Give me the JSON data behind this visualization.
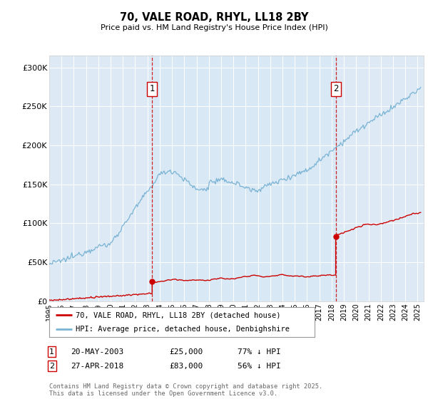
{
  "title": "70, VALE ROAD, RHYL, LL18 2BY",
  "subtitle": "Price paid vs. HM Land Registry's House Price Index (HPI)",
  "ylabel_ticks": [
    "£0",
    "£50K",
    "£100K",
    "£150K",
    "£200K",
    "£250K",
    "£300K"
  ],
  "ytick_vals": [
    0,
    50000,
    100000,
    150000,
    200000,
    250000,
    300000
  ],
  "ylim": [
    0,
    315000
  ],
  "xlim_start": 1995.0,
  "xlim_end": 2025.5,
  "hpi_color": "#7ab3d4",
  "hpi_fill_color": "#d8e8f4",
  "price_color": "#cc0000",
  "marker1_date": 2003.38,
  "marker2_date": 2018.33,
  "sale1_price_val": 25000,
  "sale2_price_val": 83000,
  "sale1_date": "20-MAY-2003",
  "sale1_price": "£25,000",
  "sale1_pct": "77% ↓ HPI",
  "sale2_date": "27-APR-2018",
  "sale2_price": "£83,000",
  "sale2_pct": "56% ↓ HPI",
  "legend1": "70, VALE ROAD, RHYL, LL18 2BY (detached house)",
  "legend2": "HPI: Average price, detached house, Denbighshire",
  "footer": "Contains HM Land Registry data © Crown copyright and database right 2025.\nThis data is licensed under the Open Government Licence v3.0.",
  "bg_color": "#ddeaf5",
  "plot_bg": "#ffffff"
}
